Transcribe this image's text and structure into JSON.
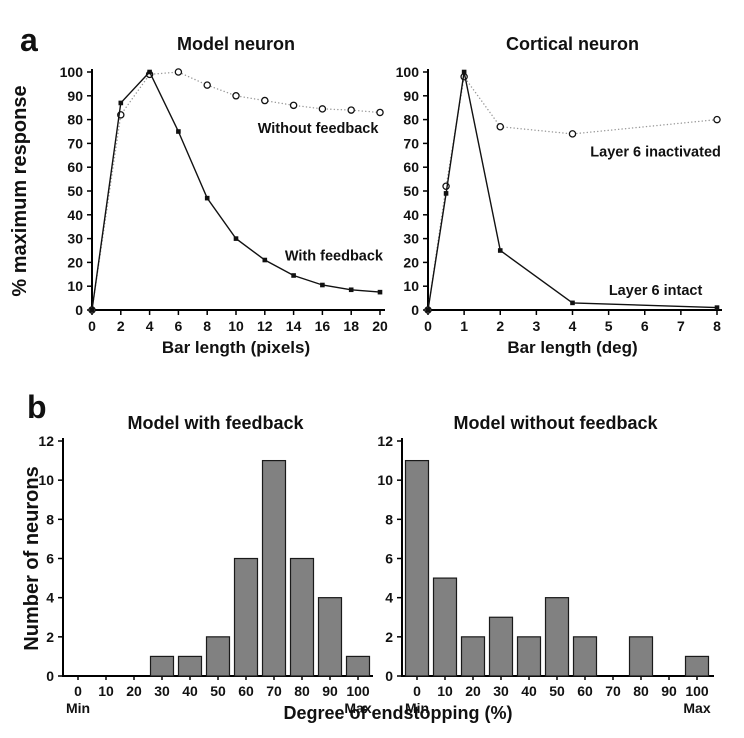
{
  "panels": {
    "a": {
      "label": "a"
    },
    "b": {
      "label": "b",
      "xlabel": "Degree of endstopping (%)"
    }
  },
  "colors": {
    "axis": "#000000",
    "text": "#111111",
    "solid_line": "#111111",
    "dotted_line": "#999999",
    "marker_fill": "#ffffff",
    "bar_fill": "#818181",
    "bar_stroke": "#1a1a1a"
  },
  "chart_data": [
    {
      "id": "model-neuron",
      "type": "line",
      "title": "Model neuron",
      "xlabel": "Bar length (pixels)",
      "ylabel": "% maximum response",
      "xlim": [
        0,
        20
      ],
      "ylim": [
        0,
        100
      ],
      "xticks": [
        0,
        2,
        4,
        6,
        8,
        10,
        12,
        14,
        16,
        18,
        20
      ],
      "yticks": [
        0,
        10,
        20,
        30,
        40,
        50,
        60,
        70,
        80,
        90,
        100
      ],
      "series": [
        {
          "name": "Without feedback",
          "line": "dotted",
          "marker": "circle",
          "x": [
            0,
            2,
            4,
            6,
            8,
            10,
            12,
            14,
            16,
            18,
            20
          ],
          "y": [
            0,
            82,
            99,
            100,
            94.5,
            90,
            88,
            86,
            84.5,
            84,
            83
          ],
          "label": {
            "text": "Without feedback",
            "x": 15.7,
            "y": 76.5
          }
        },
        {
          "name": "With feedback",
          "line": "solid",
          "marker": "square",
          "x": [
            0,
            2,
            4,
            6,
            8,
            10,
            12,
            14,
            16,
            18,
            20
          ],
          "y": [
            0,
            87,
            100,
            75,
            47,
            30,
            21,
            14.5,
            10.5,
            8.5,
            7.5
          ],
          "label": {
            "text": "With feedback",
            "x": 16.8,
            "y": 23
          }
        }
      ]
    },
    {
      "id": "cortical-neuron",
      "type": "line",
      "title": "Cortical neuron",
      "xlabel": "Bar length (deg)",
      "ylabel": "",
      "xlim": [
        0,
        8
      ],
      "ylim": [
        0,
        100
      ],
      "xticks": [
        0,
        1,
        2,
        3,
        4,
        5,
        6,
        7,
        8
      ],
      "yticks": [
        0,
        10,
        20,
        30,
        40,
        50,
        60,
        70,
        80,
        90,
        100
      ],
      "series": [
        {
          "name": "Layer 6 inactivated",
          "line": "dotted",
          "marker": "circle",
          "x": [
            0,
            0.5,
            1,
            2,
            4,
            8
          ],
          "y": [
            0,
            52,
            98,
            77,
            74,
            80
          ],
          "label": {
            "text": "Layer 6 inactivated",
            "x": 6.3,
            "y": 66.5
          }
        },
        {
          "name": "Layer 6 intact",
          "line": "solid",
          "marker": "square",
          "x": [
            0,
            0.5,
            1,
            2,
            4,
            8
          ],
          "y": [
            0,
            49,
            100,
            25,
            3,
            1
          ],
          "label": {
            "text": "Layer 6 intact",
            "x": 6.3,
            "y": 8.5
          }
        }
      ]
    },
    {
      "id": "model-with-feedback",
      "type": "bar",
      "title": "Model with feedback",
      "ylabel": "Number of neurons",
      "categories": [
        "0",
        "10",
        "20",
        "30",
        "40",
        "50",
        "60",
        "70",
        "80",
        "90",
        "100"
      ],
      "values": [
        0,
        0,
        0,
        1,
        1,
        2,
        6,
        11,
        6,
        4,
        1
      ],
      "ylim": [
        0,
        12
      ],
      "yticks": [
        0,
        2,
        4,
        6,
        8,
        10,
        12
      ],
      "first_tick_sublabel": "Min",
      "last_tick_sublabel": "Max"
    },
    {
      "id": "model-without-feedback",
      "type": "bar",
      "title": "Model without feedback",
      "ylabel": "",
      "categories": [
        "0",
        "10",
        "20",
        "30",
        "40",
        "50",
        "60",
        "70",
        "80",
        "90",
        "100"
      ],
      "values": [
        11,
        5,
        2,
        3,
        2,
        4,
        2,
        0,
        2,
        0,
        1
      ],
      "ylim": [
        0,
        12
      ],
      "yticks": [
        0,
        2,
        4,
        6,
        8,
        10,
        12
      ],
      "first_tick_sublabel": "Min",
      "last_tick_sublabel": "Max"
    }
  ]
}
